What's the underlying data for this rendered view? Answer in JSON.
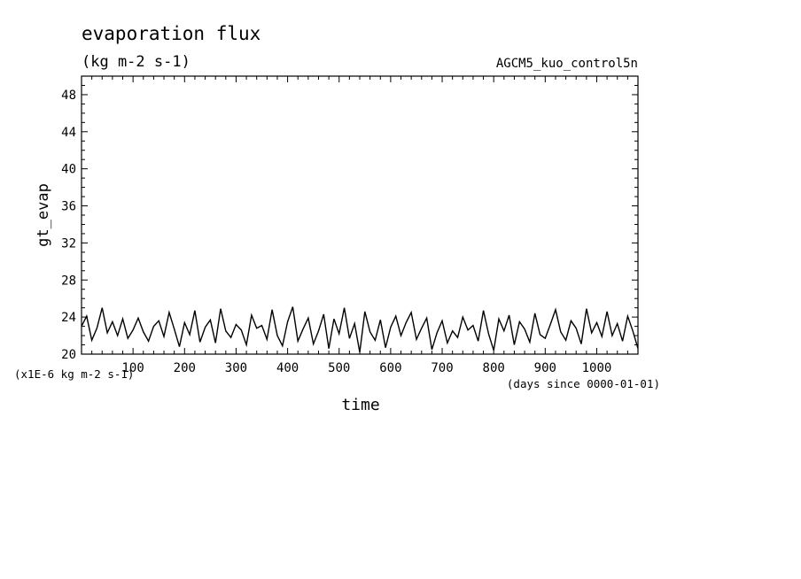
{
  "chart_data": {
    "type": "line",
    "title": "evaporation flux",
    "units": "(kg m-2 s-1)",
    "run_label": "AGCM5_kuo_control5n",
    "ylabel": "gt_evap",
    "xlabel": "time",
    "y_scale_note": "(x1E-6 kg m-2 s-1)",
    "x_unit_note": "(days since 0000-01-01)",
    "xlim": [
      0,
      1080
    ],
    "ylim": [
      20,
      50
    ],
    "x_ticks": [
      100,
      200,
      300,
      400,
      500,
      600,
      700,
      800,
      900,
      1000
    ],
    "y_ticks": [
      20,
      24,
      28,
      32,
      36,
      40,
      44,
      48
    ],
    "grid": false,
    "series": [
      {
        "x": [
          0,
          10,
          20,
          30,
          40,
          50,
          60,
          70,
          80,
          90,
          100,
          110,
          120,
          130,
          140,
          150,
          160,
          170,
          180,
          190,
          200,
          210,
          220,
          230,
          240,
          250,
          260,
          270,
          280,
          290,
          300,
          310,
          320,
          330,
          340,
          350,
          360,
          370,
          380,
          390,
          400,
          410,
          420,
          430,
          440,
          450,
          460,
          470,
          480,
          490,
          500,
          510,
          520,
          530,
          540,
          550,
          560,
          570,
          580,
          590,
          600,
          610,
          620,
          630,
          640,
          650,
          660,
          670,
          680,
          690,
          700,
          710,
          720,
          730,
          740,
          750,
          760,
          770,
          780,
          790,
          800,
          810,
          820,
          830,
          840,
          850,
          860,
          870,
          880,
          890,
          900,
          910,
          920,
          930,
          940,
          950,
          960,
          970,
          980,
          990,
          1000,
          1010,
          1020,
          1030,
          1040,
          1050,
          1060,
          1070,
          1080
        ],
        "values": [
          23.0,
          24.1,
          21.5,
          22.8,
          25.0,
          22.3,
          23.5,
          22.0,
          23.8,
          21.7,
          22.6,
          23.9,
          22.4,
          21.4,
          23.0,
          23.6,
          21.9,
          24.5,
          22.7,
          20.8,
          23.4,
          22.1,
          24.7,
          21.3,
          22.9,
          23.7,
          21.2,
          24.9,
          22.5,
          21.8,
          23.2,
          22.6,
          21.0,
          24.2,
          22.8,
          23.1,
          21.6,
          24.8,
          22.0,
          20.9,
          23.5,
          25.1,
          21.4,
          22.7,
          23.9,
          21.1,
          22.5,
          24.3,
          20.6,
          23.8,
          22.2,
          25.0,
          21.7,
          23.3,
          20.2,
          24.6,
          22.4,
          21.5,
          23.7,
          20.7,
          22.9,
          24.1,
          22.0,
          23.4,
          24.5,
          21.6,
          22.8,
          23.9,
          20.5,
          22.3,
          23.6,
          21.2,
          22.5,
          21.8,
          24.0,
          22.6,
          23.1,
          21.4,
          24.7,
          22.2,
          20.4,
          23.8,
          22.5,
          24.2,
          21.0,
          23.5,
          22.7,
          21.3,
          24.4,
          22.1,
          21.7,
          23.2,
          24.8,
          22.4,
          21.5,
          23.6,
          22.8,
          21.1,
          24.9,
          22.3,
          23.4,
          21.9,
          24.6,
          22.0,
          23.3,
          21.4,
          24.1,
          22.5,
          20.6
        ]
      }
    ]
  }
}
